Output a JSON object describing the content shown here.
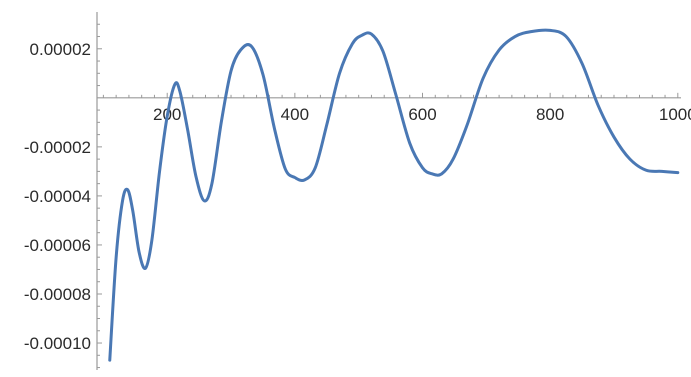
{
  "chart_data": {
    "type": "line",
    "title": "",
    "xlabel": "",
    "ylabel": "",
    "xlim": [
      90,
      1005
    ],
    "ylim": [
      -0.000111,
      3.5e-05
    ],
    "x_ticks": [
      {
        "value": 200,
        "label": "200"
      },
      {
        "value": 400,
        "label": "400"
      },
      {
        "value": 600,
        "label": "600"
      },
      {
        "value": 800,
        "label": "800"
      },
      {
        "value": 1000,
        "label": "1000"
      }
    ],
    "y_ticks": [
      {
        "value": 2e-05,
        "label": "0.00002"
      },
      {
        "value": -2e-05,
        "label": "-0.00002"
      },
      {
        "value": -4e-05,
        "label": "-0.00004"
      },
      {
        "value": -6e-05,
        "label": "-0.00006"
      },
      {
        "value": -8e-05,
        "label": "-0.00008"
      },
      {
        "value": -0.0001,
        "label": "-0.00010"
      }
    ],
    "grid": false,
    "series": [
      {
        "color": "#4a78b4",
        "points": [
          [
            110,
            -0.000107
          ],
          [
            120,
            -6.5e-05
          ],
          [
            130,
            -4.2e-05
          ],
          [
            138,
            -3.75e-05
          ],
          [
            146,
            -4.6e-05
          ],
          [
            156,
            -6.3e-05
          ],
          [
            166,
            -6.95e-05
          ],
          [
            176,
            -5.8e-05
          ],
          [
            188,
            -3e-05
          ],
          [
            200,
            -7.5e-06
          ],
          [
            212,
            5.5e-06
          ],
          [
            220,
            2.5e-06
          ],
          [
            232,
            -1.3e-05
          ],
          [
            245,
            -3.2e-05
          ],
          [
            258,
            -4.2e-05
          ],
          [
            270,
            -3.5e-05
          ],
          [
            285,
            -9.5e-06
          ],
          [
            300,
            1.1e-05
          ],
          [
            315,
            1.95e-05
          ],
          [
            332,
            2.1e-05
          ],
          [
            350,
            9.5e-06
          ],
          [
            368,
            -1.25e-05
          ],
          [
            385,
            -2.9e-05
          ],
          [
            400,
            -3.25e-05
          ],
          [
            415,
            -3.35e-05
          ],
          [
            432,
            -2.85e-05
          ],
          [
            450,
            -1.1e-05
          ],
          [
            470,
            1e-05
          ],
          [
            490,
            2.2e-05
          ],
          [
            505,
            2.55e-05
          ],
          [
            520,
            2.6e-05
          ],
          [
            538,
            1.9e-05
          ],
          [
            558,
            1.5e-06
          ],
          [
            580,
            -1.85e-05
          ],
          [
            600,
            -2.85e-05
          ],
          [
            615,
            -3.1e-05
          ],
          [
            630,
            -3.1e-05
          ],
          [
            648,
            -2.5e-05
          ],
          [
            670,
            -1.1e-05
          ],
          [
            695,
            8e-06
          ],
          [
            720,
            1.95e-05
          ],
          [
            745,
            2.5e-05
          ],
          [
            770,
            2.7e-05
          ],
          [
            800,
            2.75e-05
          ],
          [
            825,
            2.5e-05
          ],
          [
            850,
            1.4e-05
          ],
          [
            875,
            -3e-06
          ],
          [
            900,
            -1.6e-05
          ],
          [
            925,
            -2.5e-05
          ],
          [
            950,
            -2.95e-05
          ],
          [
            975,
            -3e-05
          ],
          [
            1000,
            -3.05e-05
          ]
        ]
      }
    ]
  }
}
